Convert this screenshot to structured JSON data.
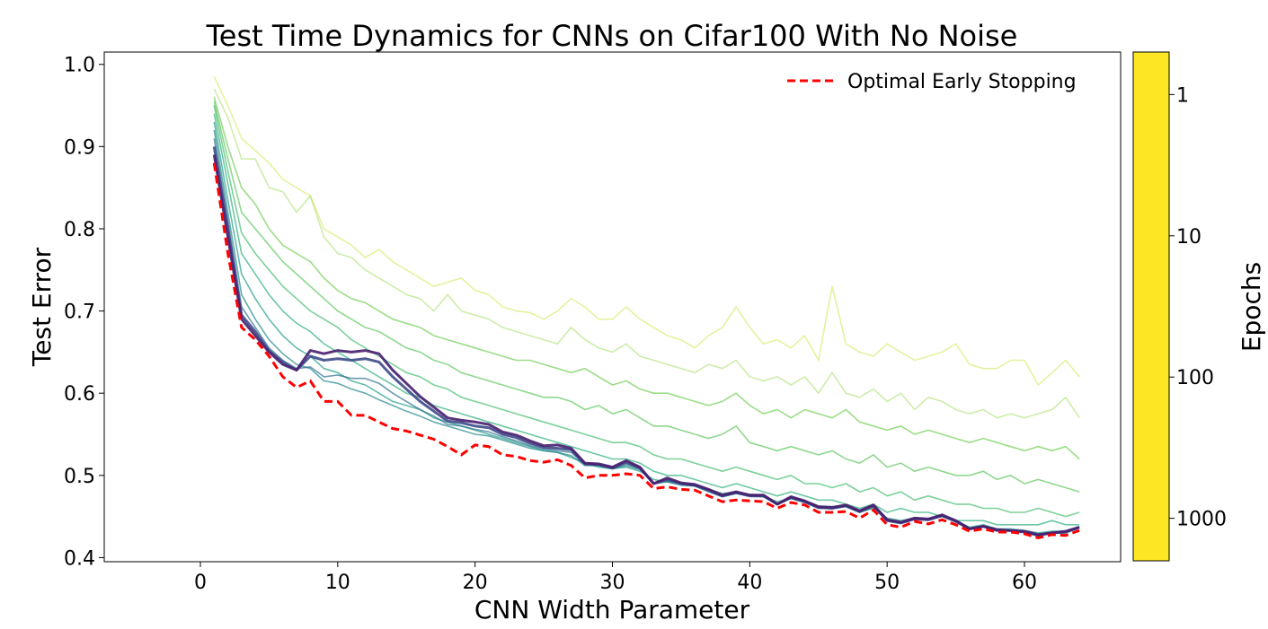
{
  "chart_data": {
    "type": "line",
    "title": "Test Time Dynamics for CNNs on Cifar100 With No Noise",
    "xlabel": "CNN Width Parameter",
    "ylabel": "Test Error",
    "xlim": [
      -7,
      67
    ],
    "ylim": [
      0.395,
      1.015
    ],
    "xticks": [
      0,
      10,
      20,
      30,
      40,
      50,
      60
    ],
    "yticks": [
      0.4,
      0.5,
      0.6,
      0.7,
      0.8,
      0.9,
      1.0
    ],
    "ytick_labels": [
      "0.4",
      "0.5",
      "0.6",
      "0.7",
      "0.8",
      "0.9",
      "1.0"
    ],
    "grid": false,
    "legend": {
      "placement": "upper-right",
      "entries": [
        {
          "label": "Optimal Early Stopping",
          "color": "#ff0000",
          "style": "dashed"
        }
      ]
    },
    "colorbar": {
      "label": "Epochs",
      "scale": "log",
      "range": [
        0.5,
        2000
      ],
      "ticks": [
        1,
        10,
        100,
        1000
      ],
      "tick_labels": [
        "1",
        "10",
        "100",
        "1000"
      ],
      "colormap": "viridis_r",
      "colors": [
        "#fde725",
        "#b5de2b",
        "#6ece58",
        "#35b779",
        "#1f9e89",
        "#26828e",
        "#31688e",
        "#3e4989",
        "#482878",
        "#440154"
      ]
    },
    "x": [
      1,
      2,
      3,
      4,
      5,
      6,
      7,
      8,
      9,
      10,
      11,
      12,
      13,
      14,
      15,
      16,
      17,
      18,
      19,
      20,
      21,
      22,
      23,
      24,
      25,
      26,
      27,
      28,
      29,
      30,
      31,
      32,
      33,
      34,
      35,
      36,
      37,
      38,
      39,
      40,
      41,
      42,
      43,
      44,
      45,
      46,
      47,
      48,
      49,
      50,
      51,
      52,
      53,
      54,
      55,
      56,
      57,
      58,
      59,
      60,
      61,
      62,
      63,
      64
    ],
    "optimal_early_stopping": [
      0.88,
      0.77,
      0.68,
      0.665,
      0.645,
      0.62,
      0.607,
      0.615,
      0.59,
      0.59,
      0.573,
      0.573,
      0.565,
      0.557,
      0.554,
      0.549,
      0.544,
      0.535,
      0.525,
      0.537,
      0.535,
      0.525,
      0.523,
      0.518,
      0.516,
      0.519,
      0.512,
      0.497,
      0.5,
      0.5,
      0.502,
      0.5,
      0.484,
      0.486,
      0.483,
      0.482,
      0.475,
      0.468,
      0.47,
      0.469,
      0.468,
      0.46,
      0.467,
      0.464,
      0.455,
      0.455,
      0.456,
      0.448,
      0.458,
      0.44,
      0.437,
      0.444,
      0.441,
      0.446,
      0.44,
      0.432,
      0.435,
      0.431,
      0.431,
      0.429,
      0.424,
      0.428,
      0.427,
      0.433
    ],
    "series": [
      {
        "epochs": 1,
        "values": [
          0.985,
          0.95,
          0.91,
          0.895,
          0.88,
          0.86,
          0.85,
          0.84,
          0.8,
          0.79,
          0.78,
          0.765,
          0.775,
          0.76,
          0.75,
          0.74,
          0.73,
          0.735,
          0.74,
          0.725,
          0.72,
          0.705,
          0.7,
          0.698,
          0.69,
          0.7,
          0.715,
          0.705,
          0.69,
          0.69,
          0.705,
          0.69,
          0.68,
          0.67,
          0.665,
          0.655,
          0.67,
          0.68,
          0.705,
          0.68,
          0.66,
          0.665,
          0.655,
          0.67,
          0.64,
          0.73,
          0.66,
          0.65,
          0.645,
          0.66,
          0.65,
          0.64,
          0.645,
          0.65,
          0.66,
          0.635,
          0.63,
          0.63,
          0.64,
          0.64,
          0.61,
          0.625,
          0.64,
          0.62
        ]
      },
      {
        "epochs": 2,
        "values": [
          0.97,
          0.935,
          0.885,
          0.885,
          0.85,
          0.845,
          0.82,
          0.84,
          0.79,
          0.77,
          0.765,
          0.75,
          0.74,
          0.73,
          0.72,
          0.715,
          0.7,
          0.72,
          0.7,
          0.695,
          0.69,
          0.68,
          0.675,
          0.67,
          0.665,
          0.66,
          0.68,
          0.665,
          0.655,
          0.65,
          0.66,
          0.645,
          0.64,
          0.635,
          0.63,
          0.625,
          0.635,
          0.63,
          0.64,
          0.62,
          0.615,
          0.62,
          0.61,
          0.62,
          0.6,
          0.625,
          0.6,
          0.595,
          0.605,
          0.59,
          0.6,
          0.58,
          0.595,
          0.59,
          0.58,
          0.575,
          0.58,
          0.57,
          0.575,
          0.57,
          0.575,
          0.58,
          0.595,
          0.57
        ]
      },
      {
        "epochs": 3,
        "values": [
          0.96,
          0.9,
          0.85,
          0.83,
          0.8,
          0.78,
          0.77,
          0.76,
          0.74,
          0.725,
          0.715,
          0.71,
          0.7,
          0.69,
          0.685,
          0.68,
          0.67,
          0.665,
          0.66,
          0.655,
          0.65,
          0.645,
          0.64,
          0.64,
          0.635,
          0.63,
          0.625,
          0.63,
          0.62,
          0.61,
          0.615,
          0.605,
          0.6,
          0.6,
          0.595,
          0.59,
          0.585,
          0.59,
          0.6,
          0.585,
          0.575,
          0.58,
          0.57,
          0.58,
          0.575,
          0.57,
          0.58,
          0.565,
          0.56,
          0.555,
          0.56,
          0.55,
          0.555,
          0.55,
          0.545,
          0.54,
          0.545,
          0.54,
          0.535,
          0.53,
          0.535,
          0.53,
          0.535,
          0.52
        ]
      },
      {
        "epochs": 4,
        "values": [
          0.955,
          0.885,
          0.82,
          0.8,
          0.78,
          0.76,
          0.745,
          0.73,
          0.715,
          0.7,
          0.69,
          0.68,
          0.675,
          0.665,
          0.655,
          0.65,
          0.64,
          0.635,
          0.625,
          0.62,
          0.615,
          0.61,
          0.605,
          0.6,
          0.595,
          0.595,
          0.59,
          0.58,
          0.585,
          0.575,
          0.58,
          0.57,
          0.56,
          0.56,
          0.555,
          0.55,
          0.545,
          0.55,
          0.56,
          0.54,
          0.535,
          0.53,
          0.535,
          0.53,
          0.525,
          0.53,
          0.52,
          0.515,
          0.525,
          0.51,
          0.515,
          0.505,
          0.51,
          0.505,
          0.5,
          0.5,
          0.505,
          0.495,
          0.5,
          0.49,
          0.495,
          0.49,
          0.485,
          0.48
        ]
      },
      {
        "epochs": 6,
        "values": [
          0.95,
          0.87,
          0.795,
          0.77,
          0.75,
          0.73,
          0.715,
          0.7,
          0.69,
          0.68,
          0.665,
          0.655,
          0.645,
          0.635,
          0.625,
          0.62,
          0.61,
          0.605,
          0.595,
          0.59,
          0.585,
          0.58,
          0.575,
          0.57,
          0.565,
          0.56,
          0.555,
          0.55,
          0.545,
          0.54,
          0.54,
          0.535,
          0.525,
          0.52,
          0.52,
          0.515,
          0.51,
          0.505,
          0.51,
          0.505,
          0.5,
          0.495,
          0.5,
          0.49,
          0.49,
          0.485,
          0.49,
          0.48,
          0.485,
          0.475,
          0.48,
          0.47,
          0.475,
          0.47,
          0.465,
          0.465,
          0.46,
          0.46,
          0.455,
          0.455,
          0.46,
          0.455,
          0.45,
          0.455
        ]
      },
      {
        "epochs": 10,
        "values": [
          0.94,
          0.855,
          0.77,
          0.745,
          0.72,
          0.7,
          0.685,
          0.675,
          0.66,
          0.65,
          0.64,
          0.63,
          0.62,
          0.61,
          0.6,
          0.595,
          0.585,
          0.58,
          0.575,
          0.57,
          0.565,
          0.56,
          0.555,
          0.55,
          0.545,
          0.54,
          0.535,
          0.53,
          0.525,
          0.52,
          0.52,
          0.515,
          0.505,
          0.5,
          0.5,
          0.495,
          0.49,
          0.485,
          0.49,
          0.485,
          0.48,
          0.475,
          0.48,
          0.475,
          0.47,
          0.47,
          0.465,
          0.46,
          0.465,
          0.455,
          0.46,
          0.455,
          0.455,
          0.45,
          0.445,
          0.445,
          0.445,
          0.44,
          0.44,
          0.44,
          0.44,
          0.445,
          0.44,
          0.44
        ]
      },
      {
        "epochs": 20,
        "values": [
          0.93,
          0.835,
          0.745,
          0.715,
          0.69,
          0.67,
          0.655,
          0.645,
          0.63,
          0.625,
          0.615,
          0.61,
          0.6,
          0.59,
          0.585,
          0.58,
          0.57,
          0.565,
          0.56,
          0.555,
          0.55,
          0.545,
          0.54,
          0.535,
          0.53,
          0.528,
          0.522,
          0.515,
          0.51,
          0.508,
          0.51,
          0.505,
          0.495,
          0.492,
          0.49,
          0.488,
          0.483,
          0.478,
          0.48,
          0.477,
          0.475,
          0.468,
          0.472,
          0.468,
          0.462,
          0.462,
          0.462,
          0.455,
          0.46,
          0.448,
          0.445,
          0.448,
          0.447,
          0.45,
          0.445,
          0.437,
          0.44,
          0.435,
          0.435,
          0.433,
          0.43,
          0.432,
          0.432,
          0.437
        ]
      },
      {
        "epochs": 40,
        "values": [
          0.92,
          0.82,
          0.72,
          0.69,
          0.665,
          0.648,
          0.635,
          0.63,
          0.615,
          0.612,
          0.605,
          0.6,
          0.592,
          0.585,
          0.578,
          0.572,
          0.565,
          0.56,
          0.555,
          0.55,
          0.548,
          0.543,
          0.538,
          0.533,
          0.53,
          0.528,
          0.524,
          0.512,
          0.512,
          0.508,
          0.512,
          0.507,
          0.49,
          0.492,
          0.488,
          0.487,
          0.48,
          0.474,
          0.478,
          0.475,
          0.474,
          0.465,
          0.472,
          0.467,
          0.46,
          0.46,
          0.462,
          0.455,
          0.462,
          0.445,
          0.442,
          0.447,
          0.446,
          0.45,
          0.444,
          0.435,
          0.438,
          0.433,
          0.433,
          0.431,
          0.427,
          0.43,
          0.43,
          0.436
        ]
      },
      {
        "epochs": 100,
        "values": [
          0.91,
          0.81,
          0.705,
          0.68,
          0.655,
          0.64,
          0.63,
          0.632,
          0.62,
          0.622,
          0.618,
          0.618,
          0.612,
          0.6,
          0.59,
          0.58,
          0.572,
          0.562,
          0.56,
          0.556,
          0.553,
          0.547,
          0.542,
          0.536,
          0.532,
          0.53,
          0.528,
          0.513,
          0.512,
          0.508,
          0.514,
          0.508,
          0.49,
          0.494,
          0.489,
          0.487,
          0.481,
          0.474,
          0.478,
          0.475,
          0.474,
          0.465,
          0.472,
          0.467,
          0.46,
          0.46,
          0.462,
          0.455,
          0.462,
          0.445,
          0.442,
          0.447,
          0.446,
          0.45,
          0.444,
          0.435,
          0.438,
          0.433,
          0.433,
          0.431,
          0.427,
          0.43,
          0.43,
          0.436
        ]
      },
      {
        "epochs": 300,
        "values": [
          0.9,
          0.8,
          0.695,
          0.675,
          0.652,
          0.638,
          0.628,
          0.645,
          0.64,
          0.642,
          0.64,
          0.642,
          0.638,
          0.62,
          0.605,
          0.59,
          0.578,
          0.566,
          0.564,
          0.56,
          0.558,
          0.55,
          0.546,
          0.539,
          0.534,
          0.533,
          0.531,
          0.514,
          0.513,
          0.509,
          0.516,
          0.509,
          0.49,
          0.495,
          0.49,
          0.488,
          0.482,
          0.475,
          0.479,
          0.475,
          0.475,
          0.465,
          0.473,
          0.468,
          0.461,
          0.46,
          0.463,
          0.456,
          0.463,
          0.445,
          0.442,
          0.447,
          0.446,
          0.451,
          0.444,
          0.435,
          0.438,
          0.433,
          0.433,
          0.431,
          0.427,
          0.43,
          0.431,
          0.437
        ]
      },
      {
        "epochs": 1000,
        "values": [
          0.89,
          0.79,
          0.69,
          0.67,
          0.65,
          0.635,
          0.628,
          0.652,
          0.648,
          0.652,
          0.65,
          0.652,
          0.648,
          0.628,
          0.612,
          0.596,
          0.583,
          0.57,
          0.567,
          0.565,
          0.562,
          0.553,
          0.549,
          0.542,
          0.536,
          0.537,
          0.533,
          0.515,
          0.514,
          0.51,
          0.518,
          0.51,
          0.49,
          0.497,
          0.491,
          0.489,
          0.483,
          0.476,
          0.48,
          0.476,
          0.476,
          0.465,
          0.474,
          0.469,
          0.462,
          0.461,
          0.464,
          0.457,
          0.464,
          0.446,
          0.443,
          0.448,
          0.447,
          0.452,
          0.445,
          0.435,
          0.438,
          0.434,
          0.433,
          0.432,
          0.428,
          0.43,
          0.432,
          0.437
        ]
      }
    ]
  }
}
